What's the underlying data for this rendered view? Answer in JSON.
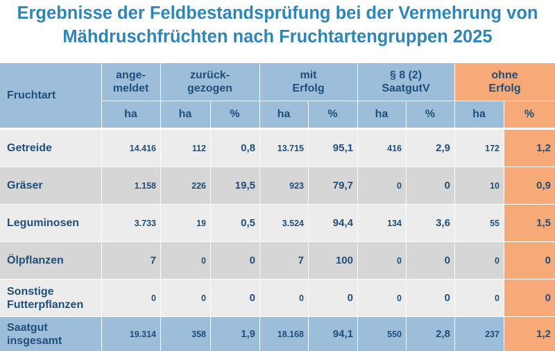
{
  "title_line1": "Ergebnisse der Feldbestandsprüfung bei der Vermehrung von",
  "title_line2": "Mähdruschfrüchten nach Fruchtartengruppen 2025",
  "header": {
    "fruchtart": "Fruchtart",
    "angemeldet": [
      "ange-",
      "meldet"
    ],
    "zurueckgezogen": [
      "zurück-",
      "gezogen"
    ],
    "mit_erfolg": [
      "mit",
      "Erfolg"
    ],
    "saatgutv": [
      "§ 8 (2)",
      "SaatgutV"
    ],
    "ohne_erfolg": [
      "ohne",
      "Erfolg"
    ],
    "units": [
      "ha",
      "ha",
      "%",
      "ha",
      "%",
      "ha",
      "%",
      "ha",
      "%"
    ]
  },
  "rows": [
    {
      "label": [
        "Getreide"
      ],
      "values": [
        "14.416",
        "112",
        "0,8",
        "13.715",
        "95,1",
        "416",
        "2,9",
        "172",
        "1,2"
      ]
    },
    {
      "label": [
        "Gräser"
      ],
      "values": [
        "1.158",
        "226",
        "19,5",
        "923",
        "79,7",
        "0",
        "0",
        "10",
        "0,9"
      ]
    },
    {
      "label": [
        "Leguminosen"
      ],
      "values": [
        "3.733",
        "19",
        "0,5",
        "3.524",
        "94,4",
        "134",
        "3,6",
        "55",
        "1,5"
      ]
    },
    {
      "label": [
        "Ölpflanzen"
      ],
      "values": [
        "7",
        "0",
        "0",
        "7",
        "100",
        "0",
        "0",
        "0",
        "0"
      ]
    },
    {
      "label": [
        "Sonstige",
        "Futterpflanzen"
      ],
      "values": [
        "0",
        "0",
        "0",
        "0",
        "0",
        "0",
        "0",
        "0",
        "0"
      ]
    },
    {
      "label": [
        "Saatgut",
        "insgesamt"
      ],
      "values": [
        "19.314",
        "358",
        "1,9",
        "18.168",
        "94,1",
        "550",
        "2,8",
        "237",
        "1,2"
      ]
    }
  ]
}
